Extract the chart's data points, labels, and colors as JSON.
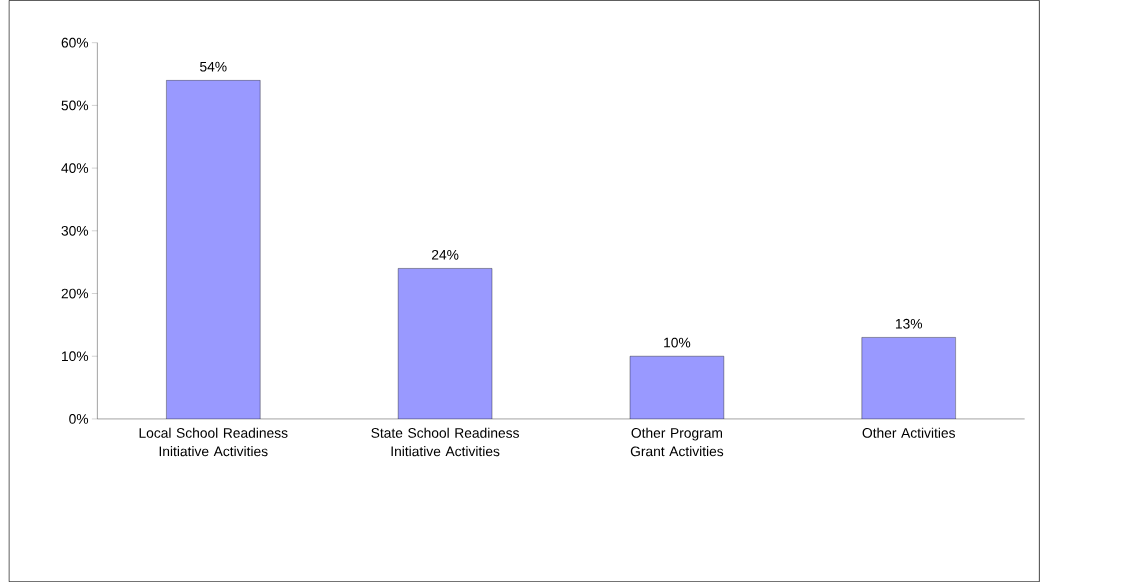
{
  "chart_data": {
    "type": "bar",
    "categories": [
      "Local School Readiness Initiative Activities",
      "State School Readiness Initiative Activities",
      "Other Program Grant Activities",
      "Other Activities"
    ],
    "values": [
      54,
      24,
      10,
      13
    ],
    "value_labels": [
      "54%",
      "24%",
      "10%",
      "13%"
    ],
    "color": "#9999ff",
    "ylim": [
      0,
      60
    ],
    "yticks": [
      {
        "value": 0,
        "label": "0%"
      },
      {
        "value": 10,
        "label": "10%"
      },
      {
        "value": 20,
        "label": "20%"
      },
      {
        "value": 30,
        "label": "30%"
      },
      {
        "value": 40,
        "label": "40%"
      },
      {
        "value": 50,
        "label": "50%"
      },
      {
        "value": 60,
        "label": "60%"
      }
    ],
    "grid": false
  }
}
